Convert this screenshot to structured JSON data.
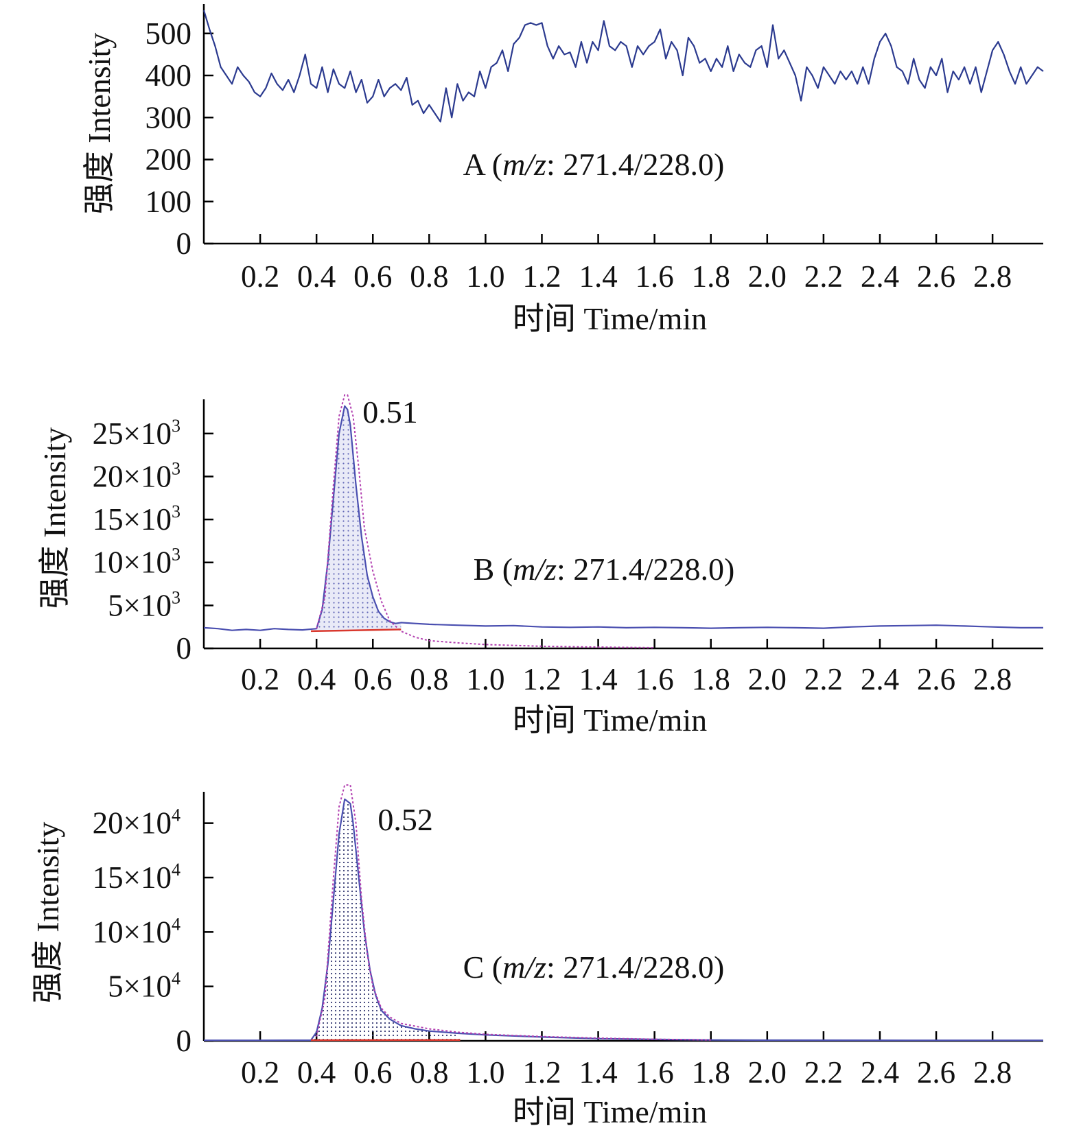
{
  "chart_data": [
    {
      "type": "line",
      "panel": "A",
      "annotation": {
        "prefix": "A (",
        "mz": "m/z",
        "suffix": ": 271.4/228.0)"
      },
      "xlabel": "时间 Time/min",
      "ylabel": "强度 Intensity",
      "xlim": [
        0,
        2.98
      ],
      "ylim": [
        0,
        560
      ],
      "x_ticks": [
        "0.2",
        "0.4",
        "0.6",
        "0.8",
        "1.0",
        "1.2",
        "1.4",
        "1.6",
        "1.8",
        "2.0",
        "2.2",
        "2.4",
        "2.6",
        "2.8"
      ],
      "y_ticks": [
        {
          "value": 0,
          "label": "0"
        },
        {
          "value": 100,
          "label": "100"
        },
        {
          "value": 200,
          "label": "200"
        },
        {
          "value": 300,
          "label": "300"
        },
        {
          "value": 400,
          "label": "400"
        },
        {
          "value": 500,
          "label": "500"
        }
      ],
      "series": [
        {
          "color": "#2b3a8f",
          "x": [
            0.0,
            0.02,
            0.04,
            0.06,
            0.08,
            0.1,
            0.12,
            0.14,
            0.16,
            0.18,
            0.2,
            0.22,
            0.24,
            0.26,
            0.28,
            0.3,
            0.32,
            0.34,
            0.36,
            0.38,
            0.4,
            0.42,
            0.44,
            0.46,
            0.48,
            0.5,
            0.52,
            0.54,
            0.56,
            0.58,
            0.6,
            0.62,
            0.64,
            0.66,
            0.68,
            0.7,
            0.72,
            0.74,
            0.76,
            0.78,
            0.8,
            0.82,
            0.84,
            0.86,
            0.88,
            0.9,
            0.92,
            0.94,
            0.96,
            0.98,
            1.0,
            1.02,
            1.04,
            1.06,
            1.08,
            1.1,
            1.12,
            1.14,
            1.16,
            1.18,
            1.2,
            1.22,
            1.24,
            1.26,
            1.28,
            1.3,
            1.32,
            1.34,
            1.36,
            1.38,
            1.4,
            1.42,
            1.44,
            1.46,
            1.48,
            1.5,
            1.52,
            1.54,
            1.56,
            1.58,
            1.6,
            1.62,
            1.64,
            1.66,
            1.68,
            1.7,
            1.72,
            1.74,
            1.76,
            1.78,
            1.8,
            1.82,
            1.84,
            1.86,
            1.88,
            1.9,
            1.92,
            1.94,
            1.96,
            1.98,
            2.0,
            2.02,
            2.04,
            2.06,
            2.08,
            2.1,
            2.12,
            2.14,
            2.16,
            2.18,
            2.2,
            2.22,
            2.24,
            2.26,
            2.28,
            2.3,
            2.32,
            2.34,
            2.36,
            2.38,
            2.4,
            2.42,
            2.44,
            2.46,
            2.48,
            2.5,
            2.52,
            2.54,
            2.56,
            2.58,
            2.6,
            2.62,
            2.64,
            2.66,
            2.68,
            2.7,
            2.72,
            2.74,
            2.76,
            2.78,
            2.8,
            2.82,
            2.84,
            2.86,
            2.88,
            2.9,
            2.92,
            2.94,
            2.96,
            2.98
          ],
          "y": [
            555,
            510,
            470,
            420,
            400,
            380,
            420,
            400,
            385,
            360,
            350,
            370,
            405,
            380,
            365,
            390,
            360,
            400,
            450,
            380,
            370,
            420,
            360,
            415,
            380,
            370,
            410,
            360,
            390,
            335,
            350,
            390,
            350,
            370,
            380,
            365,
            395,
            330,
            340,
            310,
            330,
            310,
            290,
            370,
            300,
            380,
            340,
            360,
            350,
            410,
            370,
            420,
            430,
            460,
            410,
            475,
            490,
            520,
            525,
            520,
            525,
            470,
            440,
            470,
            450,
            455,
            420,
            480,
            430,
            480,
            460,
            530,
            470,
            460,
            480,
            470,
            420,
            470,
            450,
            470,
            480,
            510,
            440,
            480,
            460,
            400,
            490,
            470,
            430,
            440,
            410,
            440,
            420,
            470,
            410,
            450,
            430,
            420,
            460,
            470,
            420,
            520,
            440,
            460,
            430,
            400,
            340,
            420,
            400,
            370,
            420,
            400,
            380,
            410,
            390,
            410,
            380,
            420,
            380,
            440,
            480,
            500,
            470,
            420,
            410,
            380,
            440,
            390,
            370,
            420,
            400,
            440,
            360,
            410,
            390,
            420,
            380,
            420,
            360,
            410,
            460,
            480,
            450,
            410,
            380,
            420,
            380,
            400,
            420,
            410
          ]
        }
      ]
    },
    {
      "type": "line",
      "panel": "B",
      "annotation": {
        "prefix": "B (",
        "mz": "m/z",
        "suffix": ": 271.4/228.0)"
      },
      "peak_label": "0.51",
      "peak_x": 0.51,
      "xlabel": "时间 Time/min",
      "ylabel": "强度 Intensity",
      "xlim": [
        0,
        2.98
      ],
      "ylim": [
        0,
        28500
      ],
      "x_ticks": [
        "0.2",
        "0.4",
        "0.6",
        "0.8",
        "1.0",
        "1.2",
        "1.4",
        "1.6",
        "1.8",
        "2.0",
        "2.2",
        "2.4",
        "2.6",
        "2.8"
      ],
      "y_ticks": [
        {
          "value": 0,
          "label": "0"
        },
        {
          "value": 5000,
          "mant": "5×10",
          "exp": "3"
        },
        {
          "value": 10000,
          "mant": "10×10",
          "exp": "3"
        },
        {
          "value": 15000,
          "mant": "15×10",
          "exp": "3"
        },
        {
          "value": 20000,
          "mant": "20×10",
          "exp": "3"
        },
        {
          "value": 25000,
          "mant": "25×10",
          "exp": "3"
        }
      ],
      "series": [
        {
          "role": "signal",
          "color": "#4a4fb0",
          "x": [
            0.0,
            0.05,
            0.1,
            0.15,
            0.2,
            0.25,
            0.3,
            0.35,
            0.4,
            0.42,
            0.44,
            0.46,
            0.48,
            0.5,
            0.51,
            0.52,
            0.54,
            0.56,
            0.58,
            0.6,
            0.62,
            0.64,
            0.66,
            0.68,
            0.7,
            0.75,
            0.8,
            0.9,
            1.0,
            1.1,
            1.2,
            1.3,
            1.4,
            1.5,
            1.6,
            1.7,
            1.8,
            1.9,
            2.0,
            2.1,
            2.2,
            2.3,
            2.4,
            2.5,
            2.6,
            2.7,
            2.8,
            2.9,
            2.98
          ],
          "y": [
            2400,
            2300,
            2100,
            2200,
            2100,
            2300,
            2200,
            2150,
            2300,
            4500,
            10000,
            17500,
            25000,
            28200,
            27800,
            26000,
            19000,
            13000,
            8500,
            6000,
            4300,
            3500,
            3100,
            2900,
            3000,
            2900,
            2800,
            2700,
            2600,
            2650,
            2500,
            2450,
            2500,
            2400,
            2450,
            2400,
            2350,
            2400,
            2450,
            2400,
            2350,
            2500,
            2600,
            2650,
            2700,
            2600,
            2500,
            2400,
            2400
          ]
        },
        {
          "role": "fit",
          "color": "#b23fb0",
          "x": [
            0.4,
            0.43,
            0.46,
            0.48,
            0.5,
            0.51,
            0.53,
            0.55,
            0.57,
            0.6,
            0.63,
            0.66,
            0.7,
            0.75,
            0.8,
            0.9,
            1.0,
            1.2,
            1.4,
            1.6
          ],
          "y": [
            2300,
            6000,
            19000,
            27000,
            29500,
            29500,
            27000,
            21000,
            14000,
            9000,
            5500,
            3200,
            2000,
            1300,
            900,
            650,
            450,
            250,
            150,
            80
          ]
        },
        {
          "role": "baseline",
          "color": "#d9372c",
          "x": [
            0.38,
            0.7
          ],
          "y": [
            2000,
            2200
          ]
        }
      ]
    },
    {
      "type": "line",
      "panel": "C",
      "annotation": {
        "prefix": "C (",
        "mz": "m/z",
        "suffix": ": 271.4/228.0)"
      },
      "peak_label": "0.52",
      "peak_x": 0.52,
      "xlabel": "时间 Time/min",
      "ylabel": "强度 Intensity",
      "xlim": [
        0,
        2.98
      ],
      "ylim": [
        0,
        225000
      ],
      "x_ticks": [
        "0.2",
        "0.4",
        "0.6",
        "0.8",
        "1.0",
        "1.2",
        "1.4",
        "1.6",
        "1.8",
        "2.0",
        "2.2",
        "2.4",
        "2.6",
        "2.8"
      ],
      "y_ticks": [
        {
          "value": 0,
          "label": "0"
        },
        {
          "value": 50000,
          "mant": "5×10",
          "exp": "4"
        },
        {
          "value": 100000,
          "mant": "10×10",
          "exp": "4"
        },
        {
          "value": 150000,
          "mant": "15×10",
          "exp": "4"
        },
        {
          "value": 200000,
          "mant": "20×10",
          "exp": "4"
        }
      ],
      "series": [
        {
          "role": "signal",
          "color": "#4a4fb0",
          "x": [
            0.0,
            0.2,
            0.38,
            0.4,
            0.42,
            0.44,
            0.46,
            0.48,
            0.5,
            0.52,
            0.53,
            0.55,
            0.57,
            0.59,
            0.61,
            0.63,
            0.66,
            0.7,
            0.75,
            0.8,
            0.9,
            1.0,
            1.2,
            1.4,
            1.6,
            1.8,
            2.0,
            2.5,
            2.98
          ],
          "y": [
            500,
            500,
            600,
            8000,
            30000,
            70000,
            130000,
            190000,
            222000,
            218000,
            200000,
            150000,
            100000,
            65000,
            42000,
            28000,
            20000,
            14000,
            11000,
            9000,
            7000,
            5500,
            3500,
            2000,
            1300,
            800,
            600,
            500,
            500
          ]
        },
        {
          "role": "fit",
          "color": "#b23fb0",
          "x": [
            0.4,
            0.43,
            0.46,
            0.48,
            0.5,
            0.52,
            0.54,
            0.56,
            0.58,
            0.6,
            0.63,
            0.66,
            0.7,
            0.8,
            0.9,
            1.0,
            1.2,
            1.4,
            1.6,
            1.8
          ],
          "y": [
            4000,
            40000,
            150000,
            215000,
            235000,
            235000,
            200000,
            130000,
            80000,
            50000,
            30000,
            22000,
            16000,
            11000,
            8000,
            6000,
            4000,
            2500,
            1500,
            800
          ]
        },
        {
          "role": "baseline",
          "color": "#d9372c",
          "x": [
            0.38,
            0.91
          ],
          "y": [
            600,
            800
          ]
        }
      ]
    }
  ]
}
